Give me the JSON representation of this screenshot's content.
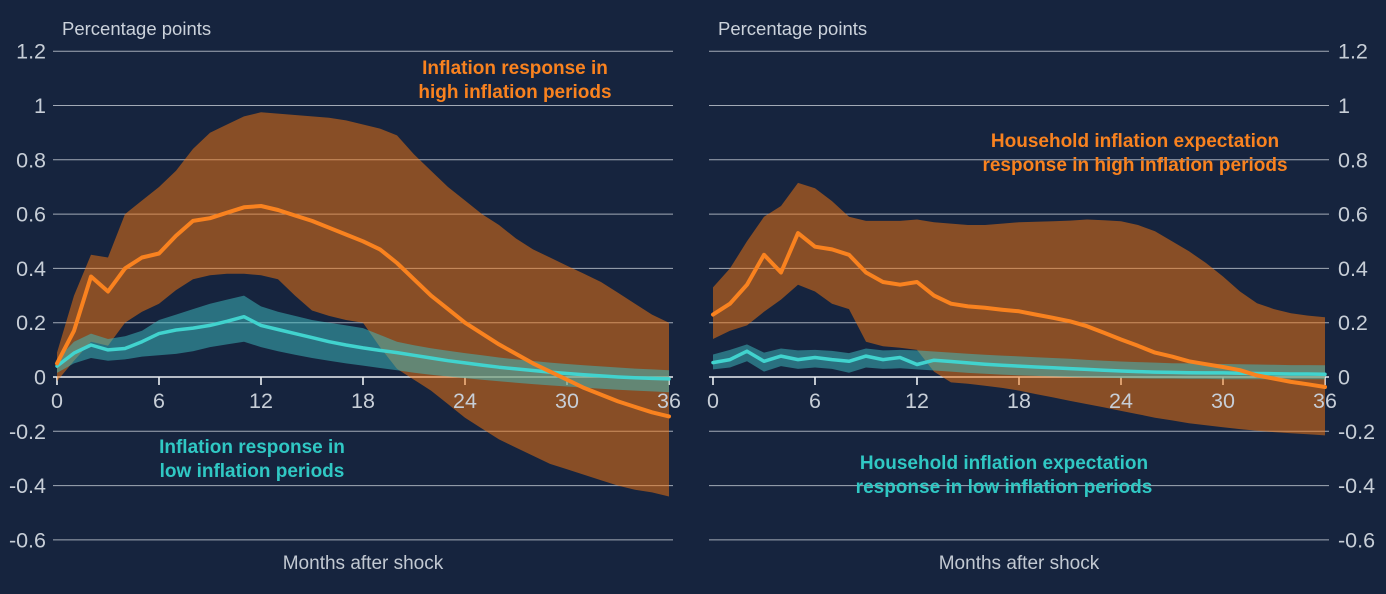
{
  "figure": {
    "background": "#16243E",
    "grid_color": "#C6CCD5",
    "axis_color": "#ECEFF3",
    "tick_text_color": "#C7CED7",
    "orange_line_color": "#F9821F",
    "orange_band_color": "rgba(248,120,16,0.51)",
    "teal_line_color": "#41D3CE",
    "teal_band_color": "rgba(61,190,194,0.5)",
    "teal_label_color": "#30C8C4"
  },
  "chart_data": [
    {
      "type": "line",
      "title": "Percentage points",
      "xlabel": "Months after shock",
      "xlim": [
        0,
        36
      ],
      "ylim": [
        -0.68,
        1.31
      ],
      "x_ticks": [
        0,
        6,
        12,
        18,
        24,
        30,
        36
      ],
      "y_ticks": [
        "1.2",
        "1",
        "0.8",
        "0.6",
        "0.4",
        "0.2",
        "0",
        "-0.2",
        "-0.4",
        "-0.6"
      ],
      "grid": true,
      "x_months": [
        0,
        1,
        2,
        3,
        4,
        5,
        6,
        7,
        8,
        9,
        10,
        11,
        12,
        13,
        14,
        15,
        16,
        17,
        18,
        19,
        20,
        21,
        22,
        23,
        24,
        25,
        26,
        27,
        28,
        29,
        30,
        31,
        32,
        33,
        34,
        35,
        36
      ],
      "annotations": {
        "high": {
          "line1": "Inflation response in",
          "line2": "high inflation periods"
        },
        "low": {
          "line1": "Inflation response in",
          "line2": "low inflation periods"
        }
      },
      "series": [
        {
          "name": "Inflation response in high inflation periods",
          "color_role": "orange",
          "values": [
            0.05,
            0.17,
            0.37,
            0.315,
            0.4,
            0.44,
            0.455,
            0.52,
            0.575,
            0.585,
            0.605,
            0.625,
            0.63,
            0.615,
            0.595,
            0.575,
            0.55,
            0.525,
            0.5,
            0.47,
            0.42,
            0.36,
            0.3,
            0.25,
            0.2,
            0.16,
            0.12,
            0.085,
            0.05,
            0.02,
            -0.01,
            -0.04,
            -0.065,
            -0.09,
            -0.11,
            -0.13,
            -0.145
          ],
          "band_upper": [
            0.09,
            0.3,
            0.45,
            0.44,
            0.6,
            0.65,
            0.7,
            0.76,
            0.84,
            0.9,
            0.93,
            0.96,
            0.975,
            0.97,
            0.965,
            0.96,
            0.955,
            0.945,
            0.93,
            0.915,
            0.89,
            0.82,
            0.76,
            0.7,
            0.65,
            0.6,
            0.56,
            0.51,
            0.47,
            0.44,
            0.41,
            0.38,
            0.35,
            0.31,
            0.27,
            0.23,
            0.2
          ],
          "band_lower": [
            -0.015,
            0.06,
            0.13,
            0.115,
            0.2,
            0.24,
            0.27,
            0.32,
            0.36,
            0.375,
            0.38,
            0.38,
            0.375,
            0.36,
            0.3,
            0.245,
            0.225,
            0.21,
            0.2,
            0.11,
            0.03,
            -0.01,
            -0.05,
            -0.1,
            -0.15,
            -0.19,
            -0.23,
            -0.26,
            -0.29,
            -0.32,
            -0.34,
            -0.36,
            -0.38,
            -0.4,
            -0.415,
            -0.425,
            -0.44
          ]
        },
        {
          "name": "Inflation response in low inflation periods",
          "color_role": "teal",
          "values": [
            0.04,
            0.088,
            0.118,
            0.1,
            0.105,
            0.13,
            0.16,
            0.173,
            0.18,
            0.19,
            0.205,
            0.222,
            0.19,
            0.175,
            0.16,
            0.145,
            0.13,
            0.118,
            0.107,
            0.098,
            0.09,
            0.08,
            0.07,
            0.06,
            0.052,
            0.044,
            0.036,
            0.03,
            0.024,
            0.018,
            0.013,
            0.008,
            0.004,
            0.0,
            -0.003,
            -0.005,
            -0.007
          ],
          "band_upper": [
            0.065,
            0.13,
            0.16,
            0.14,
            0.15,
            0.17,
            0.21,
            0.23,
            0.25,
            0.27,
            0.285,
            0.3,
            0.26,
            0.24,
            0.225,
            0.21,
            0.2,
            0.19,
            0.18,
            0.155,
            0.13,
            0.117,
            0.106,
            0.097,
            0.088,
            0.08,
            0.072,
            0.065,
            0.059,
            0.053,
            0.048,
            0.043,
            0.039,
            0.035,
            0.031,
            0.028,
            0.025
          ],
          "band_lower": [
            0.015,
            0.05,
            0.07,
            0.06,
            0.065,
            0.075,
            0.08,
            0.085,
            0.095,
            0.11,
            0.12,
            0.13,
            0.11,
            0.095,
            0.082,
            0.07,
            0.06,
            0.05,
            0.042,
            0.033,
            0.025,
            0.016,
            0.008,
            0.002,
            -0.004,
            -0.01,
            -0.016,
            -0.021,
            -0.026,
            -0.031,
            -0.035,
            -0.039,
            -0.043,
            -0.047,
            -0.05,
            -0.053,
            -0.056
          ]
        }
      ]
    },
    {
      "type": "line",
      "title": "Percentage points",
      "xlabel": "Months after shock",
      "xlim": [
        0,
        36
      ],
      "ylim": [
        -0.68,
        1.31
      ],
      "x_ticks": [
        0,
        6,
        12,
        18,
        24,
        30,
        36
      ],
      "y_ticks": [
        "1.2",
        "1",
        "0.8",
        "0.6",
        "0.4",
        "0.2",
        "0",
        "-0.2",
        "-0.4",
        "-0.6"
      ],
      "grid": true,
      "x_months": [
        0,
        1,
        2,
        3,
        4,
        5,
        6,
        7,
        8,
        9,
        10,
        11,
        12,
        13,
        14,
        15,
        16,
        17,
        18,
        19,
        20,
        21,
        22,
        23,
        24,
        25,
        26,
        27,
        28,
        29,
        30,
        31,
        32,
        33,
        34,
        35,
        36
      ],
      "annotations": {
        "high": {
          "line1": "Household inflation expectation",
          "line2": "response in high inflation periods"
        },
        "low": {
          "line1": "Household inflation expectation",
          "line2": "response in low inflation periods"
        }
      },
      "series": [
        {
          "name": "Household inflation expectation response in high inflation periods",
          "color_role": "orange",
          "values": [
            0.23,
            0.27,
            0.34,
            0.45,
            0.385,
            0.53,
            0.48,
            0.47,
            0.45,
            0.385,
            0.35,
            0.34,
            0.35,
            0.3,
            0.27,
            0.26,
            0.255,
            0.248,
            0.242,
            0.23,
            0.218,
            0.205,
            0.187,
            0.163,
            0.138,
            0.115,
            0.09,
            0.075,
            0.058,
            0.047,
            0.037,
            0.025,
            0.006,
            -0.006,
            -0.018,
            -0.027,
            -0.037
          ],
          "band_upper": [
            0.33,
            0.4,
            0.5,
            0.59,
            0.63,
            0.715,
            0.695,
            0.648,
            0.59,
            0.575,
            0.575,
            0.575,
            0.58,
            0.57,
            0.565,
            0.56,
            0.56,
            0.565,
            0.57,
            0.572,
            0.574,
            0.576,
            0.58,
            0.577,
            0.574,
            0.56,
            0.537,
            0.5,
            0.463,
            0.42,
            0.37,
            0.315,
            0.272,
            0.25,
            0.235,
            0.226,
            0.22
          ],
          "band_lower": [
            0.14,
            0.17,
            0.19,
            0.24,
            0.285,
            0.34,
            0.315,
            0.27,
            0.25,
            0.13,
            0.113,
            0.108,
            0.1,
            0.02,
            -0.02,
            -0.025,
            -0.032,
            -0.04,
            -0.05,
            -0.063,
            -0.075,
            -0.088,
            -0.1,
            -0.112,
            -0.125,
            -0.137,
            -0.15,
            -0.16,
            -0.17,
            -0.178,
            -0.185,
            -0.192,
            -0.198,
            -0.203,
            -0.207,
            -0.211,
            -0.215
          ]
        },
        {
          "name": "Household inflation expectation response in low inflation periods",
          "color_role": "teal",
          "values": [
            0.053,
            0.064,
            0.095,
            0.058,
            0.077,
            0.064,
            0.072,
            0.064,
            0.058,
            0.077,
            0.064,
            0.072,
            0.046,
            0.062,
            0.057,
            0.052,
            0.047,
            0.043,
            0.04,
            0.037,
            0.034,
            0.031,
            0.028,
            0.025,
            0.022,
            0.02,
            0.018,
            0.017,
            0.016,
            0.015,
            0.015,
            0.014,
            0.013,
            0.012,
            0.011,
            0.011,
            0.01
          ],
          "band_upper": [
            0.083,
            0.1,
            0.12,
            0.09,
            0.105,
            0.098,
            0.1,
            0.096,
            0.088,
            0.105,
            0.098,
            0.1,
            0.098,
            0.094,
            0.09,
            0.086,
            0.082,
            0.079,
            0.076,
            0.073,
            0.07,
            0.067,
            0.063,
            0.06,
            0.057,
            0.055,
            0.053,
            0.051,
            0.05,
            0.049,
            0.048,
            0.047,
            0.046,
            0.045,
            0.044,
            0.044,
            0.043
          ],
          "band_lower": [
            0.028,
            0.035,
            0.058,
            0.02,
            0.04,
            0.03,
            0.035,
            0.03,
            0.016,
            0.035,
            0.03,
            0.032,
            0.028,
            0.024,
            0.02,
            0.015,
            0.012,
            0.009,
            0.006,
            0.004,
            0.002,
            0.0,
            -0.002,
            -0.003,
            -0.004,
            -0.005,
            -0.006,
            -0.006,
            -0.007,
            -0.007,
            -0.008,
            -0.008,
            -0.008,
            -0.008,
            -0.008,
            -0.008,
            -0.008
          ]
        }
      ]
    }
  ]
}
